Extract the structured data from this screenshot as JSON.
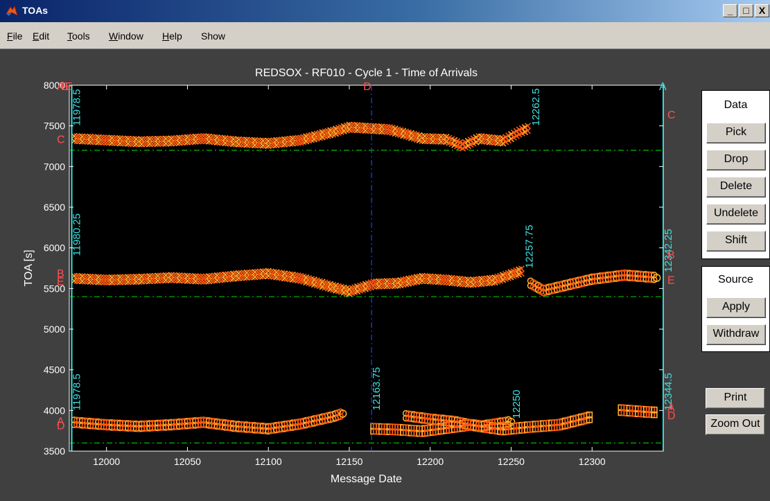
{
  "window": {
    "title": "TOAs",
    "minimize": "_",
    "maximize": "□",
    "close": "X"
  },
  "menu": [
    "File",
    "Edit",
    "Tools",
    "Window",
    "Help",
    "Show"
  ],
  "chart_data": {
    "type": "scatter",
    "title": "REDSOX - RF010 - Cycle 1 - Time of Arrivals",
    "xlabel": "Message Date",
    "ylabel": "TOA [s]",
    "xlim": [
      11977,
      12344
    ],
    "ylim": [
      3500,
      8000
    ],
    "x_ticks": [
      12000,
      12050,
      12100,
      12150,
      12200,
      12250,
      12300
    ],
    "y_ticks": [
      3500,
      4000,
      4500,
      5000,
      5500,
      6000,
      6500,
      7000,
      7500,
      8000
    ],
    "grid": false,
    "colors": {
      "background": "#000000",
      "axes": "#ffffff",
      "marks_a": "#ff5a10",
      "marks_b": "#ffb030",
      "dashed": "#00c000",
      "cyan": "#40e0e0",
      "blue": "#2040ff",
      "letter": "#ff5050"
    },
    "thresholds": [
      7200,
      5400,
      3600
    ],
    "bands": [
      {
        "marker": "x",
        "points": [
          [
            11980,
            7340
          ],
          [
            12000,
            7320
          ],
          [
            12020,
            7300
          ],
          [
            12040,
            7310
          ],
          [
            12060,
            7340
          ],
          [
            12080,
            7300
          ],
          [
            12100,
            7280
          ],
          [
            12120,
            7320
          ],
          [
            12140,
            7420
          ],
          [
            12150,
            7480
          ],
          [
            12175,
            7450
          ],
          [
            12195,
            7340
          ],
          [
            12210,
            7330
          ],
          [
            12220,
            7250
          ],
          [
            12230,
            7340
          ],
          [
            12245,
            7310
          ],
          [
            12255,
            7420
          ],
          [
            12262,
            7480
          ]
        ]
      },
      {
        "marker": "x",
        "points": [
          [
            11980,
            5620
          ],
          [
            12000,
            5600
          ],
          [
            12020,
            5610
          ],
          [
            12040,
            5630
          ],
          [
            12060,
            5610
          ],
          [
            12080,
            5650
          ],
          [
            12100,
            5680
          ],
          [
            12120,
            5620
          ],
          [
            12140,
            5510
          ],
          [
            12150,
            5460
          ],
          [
            12165,
            5550
          ],
          [
            12180,
            5560
          ],
          [
            12195,
            5620
          ],
          [
            12210,
            5600
          ],
          [
            12225,
            5570
          ],
          [
            12240,
            5600
          ],
          [
            12258,
            5720
          ]
        ]
      },
      {
        "marker": "o",
        "points": [
          [
            12262,
            5560
          ],
          [
            12270,
            5470
          ],
          [
            12285,
            5540
          ],
          [
            12300,
            5610
          ],
          [
            12320,
            5660
          ],
          [
            12340,
            5630
          ]
        ]
      },
      {
        "marker": "o",
        "points": [
          [
            11980,
            3850
          ],
          [
            12000,
            3820
          ],
          [
            12020,
            3800
          ],
          [
            12040,
            3820
          ],
          [
            12060,
            3850
          ],
          [
            12080,
            3800
          ],
          [
            12100,
            3770
          ],
          [
            12120,
            3830
          ],
          [
            12140,
            3920
          ],
          [
            12146,
            3960
          ]
        ]
      },
      {
        "marker": "o",
        "points": [
          [
            12185,
            3930
          ],
          [
            12200,
            3890
          ],
          [
            12215,
            3860
          ],
          [
            12230,
            3800
          ],
          [
            12240,
            3830
          ],
          [
            12250,
            3860
          ]
        ]
      },
      {
        "marker": "s",
        "points": [
          [
            12165,
            3770
          ],
          [
            12180,
            3760
          ],
          [
            12195,
            3740
          ],
          [
            12210,
            3780
          ],
          [
            12225,
            3820
          ],
          [
            12245,
            3760
          ],
          [
            12260,
            3790
          ],
          [
            12280,
            3820
          ],
          [
            12300,
            3920
          ]
        ]
      },
      {
        "marker": "s",
        "points": [
          [
            12318,
            4000
          ],
          [
            12325,
            3990
          ],
          [
            12332,
            3980
          ],
          [
            12340,
            3970
          ]
        ]
      }
    ],
    "vlines": [
      {
        "x": 11978.5,
        "color": "#40e0e0",
        "labels": [
          {
            "text": "11978.5",
            "y": 7500
          },
          {
            "text": "11980.25",
            "y": 5900
          },
          {
            "text": "11978.5",
            "y": 4000
          }
        ]
      },
      {
        "x": 12163.75,
        "color": "#2040ff",
        "labels": [
          {
            "text": "12163.75",
            "y": 4000
          }
        ]
      },
      {
        "x": 12344,
        "color": "#40e0e0",
        "labels": [
          {
            "text": "12342.25",
            "y": 5700
          },
          {
            "text": "12344.5",
            "y": 4000
          }
        ]
      }
    ],
    "point_labels": [
      {
        "text": "12262.5",
        "x": 12263,
        "y": 7500
      },
      {
        "text": "12257.75",
        "x": 12259,
        "y": 5750
      },
      {
        "text": "12250",
        "x": 12251,
        "y": 3900
      }
    ],
    "letters_left": [
      {
        "text": "A",
        "y": 8000
      },
      {
        "text": "B",
        "y": 8000
      },
      {
        "text": "E",
        "y": 8000
      },
      {
        "text": "C",
        "y": 7350
      },
      {
        "text": "B",
        "y": 5700
      },
      {
        "text": "E",
        "y": 5600
      },
      {
        "text": "A",
        "y": 3880
      },
      {
        "text": "D",
        "y": 3830
      }
    ],
    "letters_top": [
      {
        "text": "D",
        "x": 12163.75
      },
      {
        "text": "A",
        "x": 12344
      }
    ],
    "letters_right": [
      {
        "text": "C",
        "y": 7650
      },
      {
        "text": "B",
        "y": 5930
      },
      {
        "text": "E",
        "y": 5620
      },
      {
        "text": "A",
        "y": 4050
      },
      {
        "text": "D",
        "y": 3950
      }
    ]
  },
  "data_panel": {
    "title": "Data",
    "buttons": [
      "Pick",
      "Drop",
      "Delete",
      "Undelete",
      "Shift"
    ]
  },
  "source_panel": {
    "title": "Source",
    "buttons": [
      "Apply",
      "Withdraw"
    ]
  },
  "extra_buttons": [
    "Print",
    "Zoom Out"
  ]
}
